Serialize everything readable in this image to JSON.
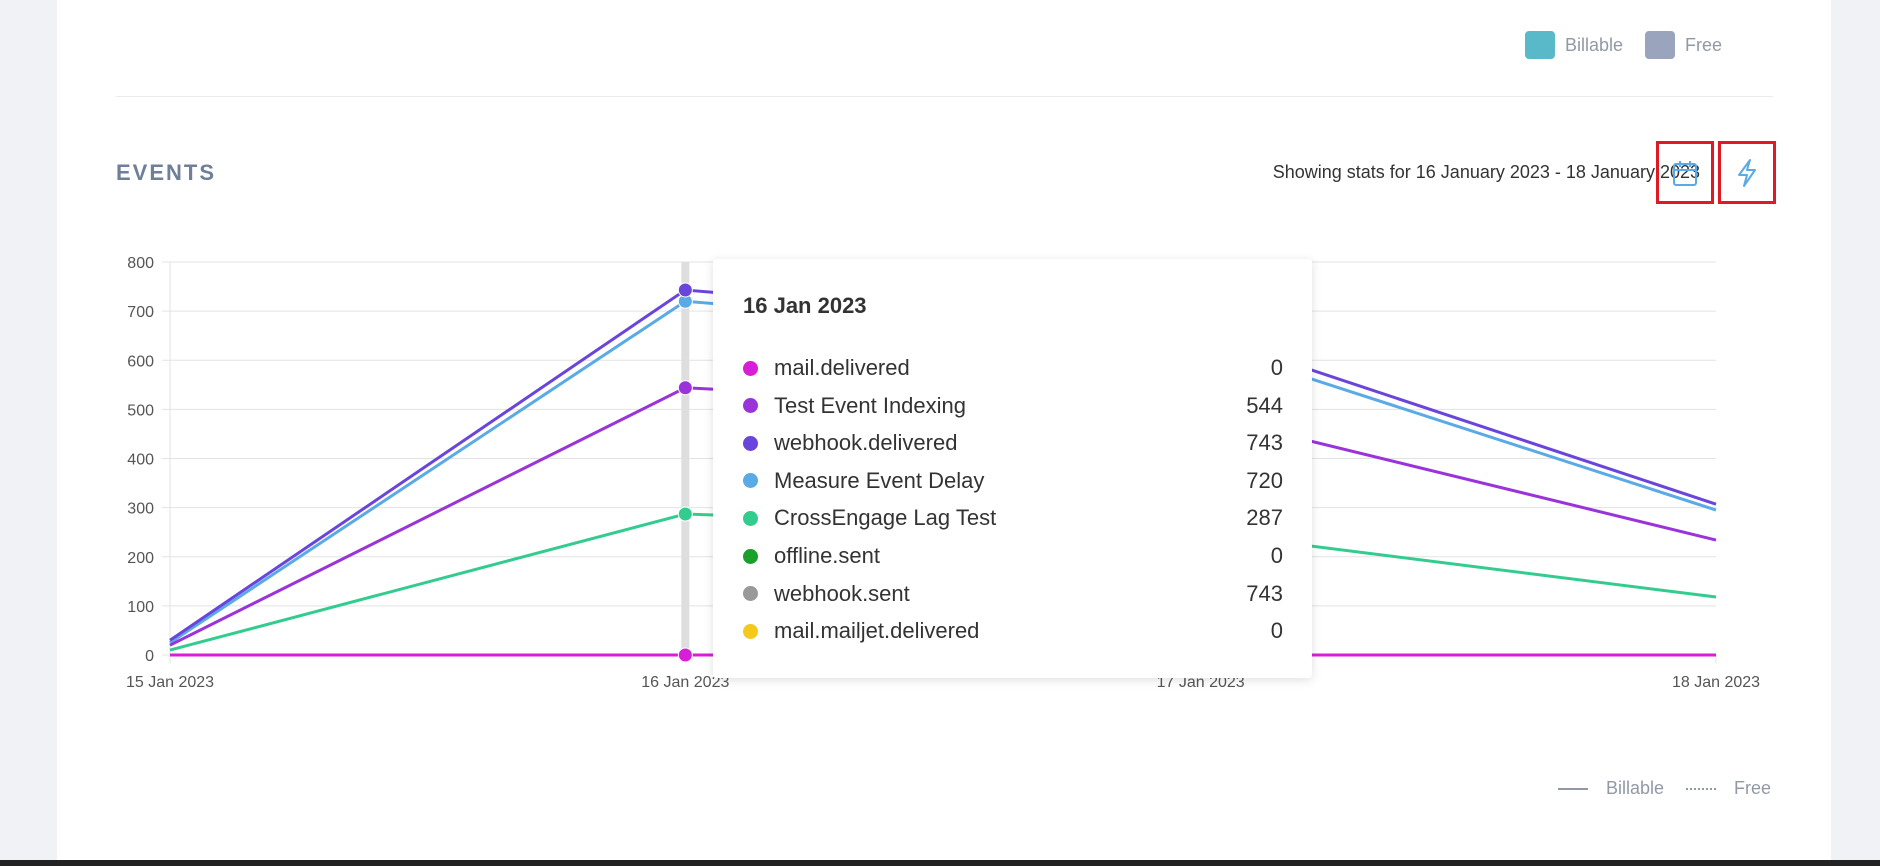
{
  "legend_top": {
    "billable_label": "Billable",
    "free_label": "Free",
    "billable_color": "#5ab9c8",
    "free_color": "#9aa5bd"
  },
  "events": {
    "title": "EVENTS",
    "stats_text": "Showing stats for 16 January 2023 - 18 January 2023",
    "calendar_icon": "calendar-icon",
    "bolt_icon": "lightning-bolt-icon"
  },
  "chart_data": {
    "type": "line",
    "categories": [
      "15 Jan 2023",
      "16 Jan 2023",
      "17 Jan 2023",
      "18 Jan 2023"
    ],
    "ylim": [
      0,
      800
    ],
    "yticks": [
      0,
      100,
      200,
      300,
      400,
      500,
      600,
      700,
      800
    ],
    "grid": true,
    "highlighted_category": "16 Jan 2023",
    "series": [
      {
        "name": "mail.delivered",
        "color": "#d81ed6",
        "values": [
          0,
          0,
          0,
          0
        ]
      },
      {
        "name": "Test Event Indexing",
        "color": "#9b33db",
        "values": [
          20,
          544,
          490,
          234
        ]
      },
      {
        "name": "webhook.delivered",
        "color": "#6a45dc",
        "values": [
          30,
          743,
          655,
          307
        ]
      },
      {
        "name": "Measure Event Delay",
        "color": "#5aaae6",
        "values": [
          25,
          720,
          635,
          295
        ]
      },
      {
        "name": "CrossEngage Lag Test",
        "color": "#33cc8f",
        "values": [
          10,
          287,
          250,
          118
        ]
      },
      {
        "name": "offline.sent",
        "color": "#1aa02a",
        "values": [
          0,
          0,
          0,
          0
        ]
      },
      {
        "name": "webhook.sent",
        "color": "#999999",
        "values": [
          30,
          743,
          655,
          307
        ]
      },
      {
        "name": "mail.mailjet.delivered",
        "color": "#f4c81c",
        "values": [
          0,
          0,
          0,
          0
        ]
      }
    ]
  },
  "tooltip": {
    "title": "16 Jan 2023",
    "rows": [
      {
        "name": "mail.delivered",
        "value": "0",
        "color": "#d81ed6"
      },
      {
        "name": "Test Event Indexing",
        "value": "544",
        "color": "#9b33db"
      },
      {
        "name": "webhook.delivered",
        "value": "743",
        "color": "#6a45dc"
      },
      {
        "name": "Measure Event Delay",
        "value": "720",
        "color": "#5aaae6"
      },
      {
        "name": "CrossEngage Lag Test",
        "value": "287",
        "color": "#33cc8f"
      },
      {
        "name": "offline.sent",
        "value": "0",
        "color": "#1aa02a"
      },
      {
        "name": "webhook.sent",
        "value": "743",
        "color": "#999999"
      },
      {
        "name": "mail.mailjet.delivered",
        "value": "0",
        "color": "#f4c81c"
      }
    ]
  },
  "legend_bottom": {
    "billable_label": "Billable",
    "free_label": "Free"
  }
}
